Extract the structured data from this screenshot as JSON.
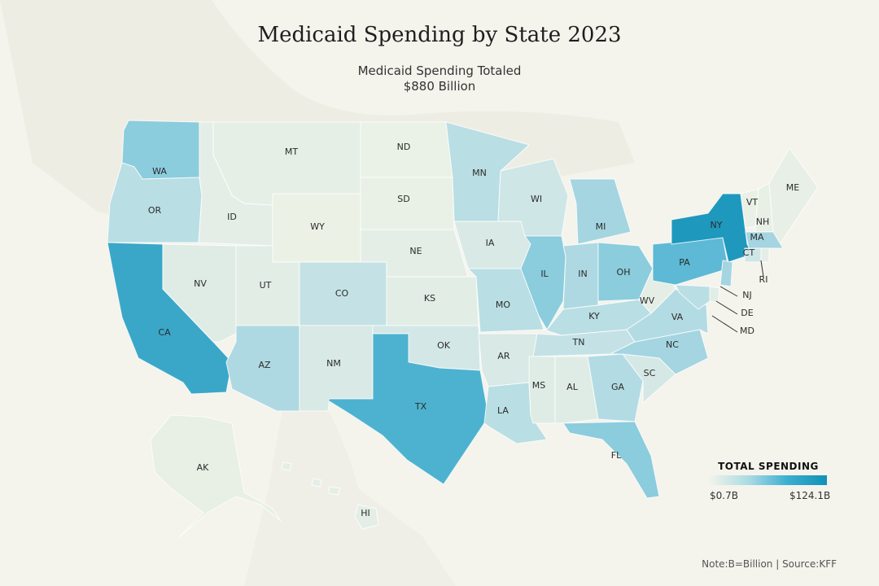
{
  "title": "Medicaid Spending by State 2023",
  "subtitle_line1": "Medicaid Spending Totaled",
  "subtitle_line2": "$880 Billion",
  "legend": {
    "title": "TOTAL SPENDING",
    "min": "$0.7B",
    "max": "$124.1B"
  },
  "note": "Note:B=Billion | Source:KFF",
  "colors": {
    "background": "#f4f3ec",
    "lowest": "#f2f3ea",
    "highest": "#1191b8"
  },
  "states": [
    {
      "abbr": "WA",
      "level": 0.55
    },
    {
      "abbr": "OR",
      "level": 0.35
    },
    {
      "abbr": "CA",
      "level": 0.85
    },
    {
      "abbr": "ID",
      "level": 0.08
    },
    {
      "abbr": "NV",
      "level": 0.12
    },
    {
      "abbr": "MT",
      "level": 0.07
    },
    {
      "abbr": "WY",
      "level": 0.02
    },
    {
      "abbr": "UT",
      "level": 0.1
    },
    {
      "abbr": "AZ",
      "level": 0.4
    },
    {
      "abbr": "CO",
      "level": 0.3
    },
    {
      "abbr": "NM",
      "level": 0.18
    },
    {
      "abbr": "ND",
      "level": 0.03
    },
    {
      "abbr": "SD",
      "level": 0.04
    },
    {
      "abbr": "NE",
      "level": 0.08
    },
    {
      "abbr": "KS",
      "level": 0.1
    },
    {
      "abbr": "OK",
      "level": 0.22
    },
    {
      "abbr": "TX",
      "level": 0.78
    },
    {
      "abbr": "MN",
      "level": 0.35
    },
    {
      "abbr": "IA",
      "level": 0.18
    },
    {
      "abbr": "MO",
      "level": 0.35
    },
    {
      "abbr": "AR",
      "level": 0.18
    },
    {
      "abbr": "LA",
      "level": 0.35
    },
    {
      "abbr": "WI",
      "level": 0.25
    },
    {
      "abbr": "IL",
      "level": 0.55
    },
    {
      "abbr": "MI",
      "level": 0.45
    },
    {
      "abbr": "IN",
      "level": 0.4
    },
    {
      "abbr": "OH",
      "level": 0.55
    },
    {
      "abbr": "KY",
      "level": 0.35
    },
    {
      "abbr": "TN",
      "level": 0.3
    },
    {
      "abbr": "MS",
      "level": 0.12
    },
    {
      "abbr": "AL",
      "level": 0.12
    },
    {
      "abbr": "GA",
      "level": 0.38
    },
    {
      "abbr": "FL",
      "level": 0.55
    },
    {
      "abbr": "SC",
      "level": 0.2
    },
    {
      "abbr": "NC",
      "level": 0.45
    },
    {
      "abbr": "VA",
      "level": 0.38
    },
    {
      "abbr": "WV",
      "level": 0.08
    },
    {
      "abbr": "PA",
      "level": 0.72
    },
    {
      "abbr": "NY",
      "level": 0.95
    },
    {
      "abbr": "VT",
      "level": 0.04
    },
    {
      "abbr": "NH",
      "level": 0.05
    },
    {
      "abbr": "ME",
      "level": 0.06
    },
    {
      "abbr": "MA",
      "level": 0.45
    },
    {
      "abbr": "CT",
      "level": 0.25
    },
    {
      "abbr": "RI",
      "level": 0.08
    },
    {
      "abbr": "NJ",
      "level": 0.45
    },
    {
      "abbr": "DE",
      "level": 0.1
    },
    {
      "abbr": "MD",
      "level": 0.35
    },
    {
      "abbr": "AK",
      "level": 0.05
    },
    {
      "abbr": "HI",
      "level": 0.08
    }
  ]
}
